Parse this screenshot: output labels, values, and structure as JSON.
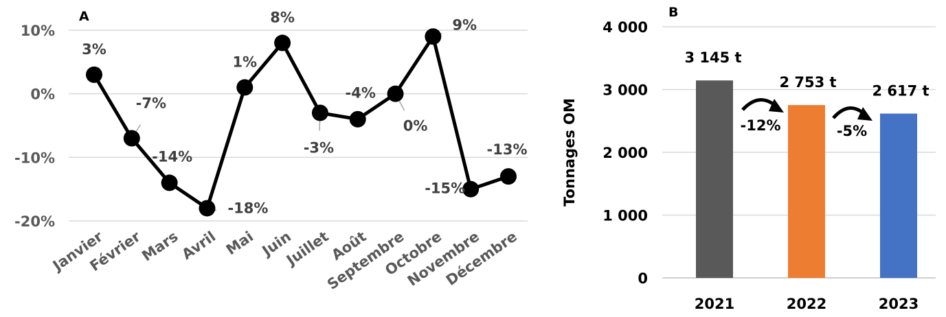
{
  "chart_data": [
    {
      "panel": "A",
      "type": "line",
      "categories": [
        "Janvier",
        "Février",
        "Mars",
        "Avril",
        "Mai",
        "Juin",
        "Juillet",
        "Août",
        "Septembre",
        "Octobre",
        "Novembre",
        "Décembre"
      ],
      "values": [
        3,
        -7,
        -14,
        -18,
        1,
        8,
        -3,
        -4,
        0,
        9,
        -15,
        -13
      ],
      "data_labels": [
        "3%",
        "-7%",
        "-14%",
        "-18%",
        "1%",
        "8%",
        "-3%",
        "-4%",
        "0%",
        "9%",
        "-15%",
        "-13%"
      ],
      "y_ticks": [
        "10%",
        "0%",
        "-10%",
        "-20%"
      ],
      "ylim": [
        -20,
        10
      ],
      "grid": true,
      "colors": {
        "line": "#000000",
        "grid": "#d9d9d9"
      }
    },
    {
      "panel": "B",
      "type": "bar",
      "categories": [
        "2021",
        "2022",
        "2023"
      ],
      "values": [
        3145,
        2753,
        2617
      ],
      "data_labels": [
        "3 145 t",
        "2 753 t",
        "2 617 t"
      ],
      "changes": [
        "-12%",
        "-5%"
      ],
      "ylabel": "Tonnages OM",
      "y_ticks": [
        "4 000",
        "3 000",
        "2 000",
        "1 000",
        "0"
      ],
      "ylim": [
        0,
        4000
      ],
      "grid": true,
      "colors": {
        "bars": [
          "#595959",
          "#ed7d31",
          "#4472c4"
        ],
        "grid": "#d9d9d9"
      }
    }
  ]
}
